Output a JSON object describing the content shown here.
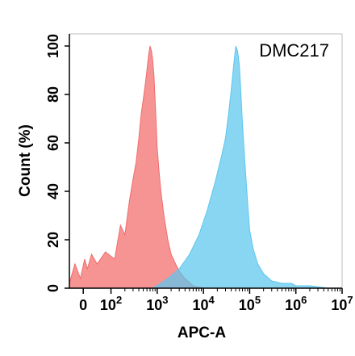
{
  "chart_data": {
    "type": "area",
    "title": "",
    "panel_label": "DMC217",
    "xlabel": "APC-A",
    "ylabel": "Count  (%)",
    "x_scale": "biexponential",
    "xlim": [
      -50,
      10000000
    ],
    "ylim": [
      0,
      105
    ],
    "x_ticks": [
      {
        "value": 0,
        "label": "0"
      },
      {
        "value": 100,
        "label": "10",
        "exp": "2"
      },
      {
        "value": 1000,
        "label": "10",
        "exp": "3"
      },
      {
        "value": 10000,
        "label": "10",
        "exp": "4"
      },
      {
        "value": 100000,
        "label": "10",
        "exp": "5"
      },
      {
        "value": 1000000,
        "label": "10",
        "exp": "6"
      },
      {
        "value": 10000000,
        "label": "10",
        "exp": "7"
      }
    ],
    "y_ticks": [
      0,
      20,
      40,
      60,
      80,
      100
    ],
    "grid": false,
    "legend": "none",
    "series": [
      {
        "color": "#f26b6b",
        "x": [
          -50,
          -30,
          -10,
          5,
          15,
          30,
          50,
          80,
          120,
          160,
          200,
          250,
          300,
          350,
          400,
          450,
          500,
          550,
          600,
          650,
          700,
          750,
          800,
          850,
          900,
          950,
          1000,
          1100,
          1200,
          1400,
          1700,
          2000,
          2500,
          3000,
          4000,
          6000,
          10000
        ],
        "values": [
          2,
          10,
          4,
          12,
          8,
          14,
          10,
          15,
          12,
          26,
          22,
          36,
          45,
          52,
          62,
          72,
          78,
          84,
          90,
          96,
          100,
          98,
          94,
          88,
          78,
          68,
          58,
          48,
          40,
          30,
          20,
          14,
          10,
          7,
          4,
          1,
          0
        ]
      },
      {
        "color": "#5cc6ef",
        "x": [
          800,
          1200,
          2000,
          3000,
          5000,
          8000,
          12000,
          18000,
          25000,
          30000,
          35000,
          40000,
          45000,
          50000,
          55000,
          60000,
          65000,
          70000,
          80000,
          90000,
          100000,
          120000,
          150000,
          200000,
          300000,
          500000,
          800000,
          1000000,
          2000000,
          5000000,
          10000000
        ],
        "values": [
          0,
          2,
          5,
          8,
          14,
          22,
          32,
          44,
          55,
          62,
          72,
          82,
          92,
          100,
          98,
          92,
          80,
          68,
          50,
          36,
          24,
          16,
          10,
          6,
          3,
          2,
          2,
          1,
          1,
          0,
          0
        ]
      }
    ]
  }
}
